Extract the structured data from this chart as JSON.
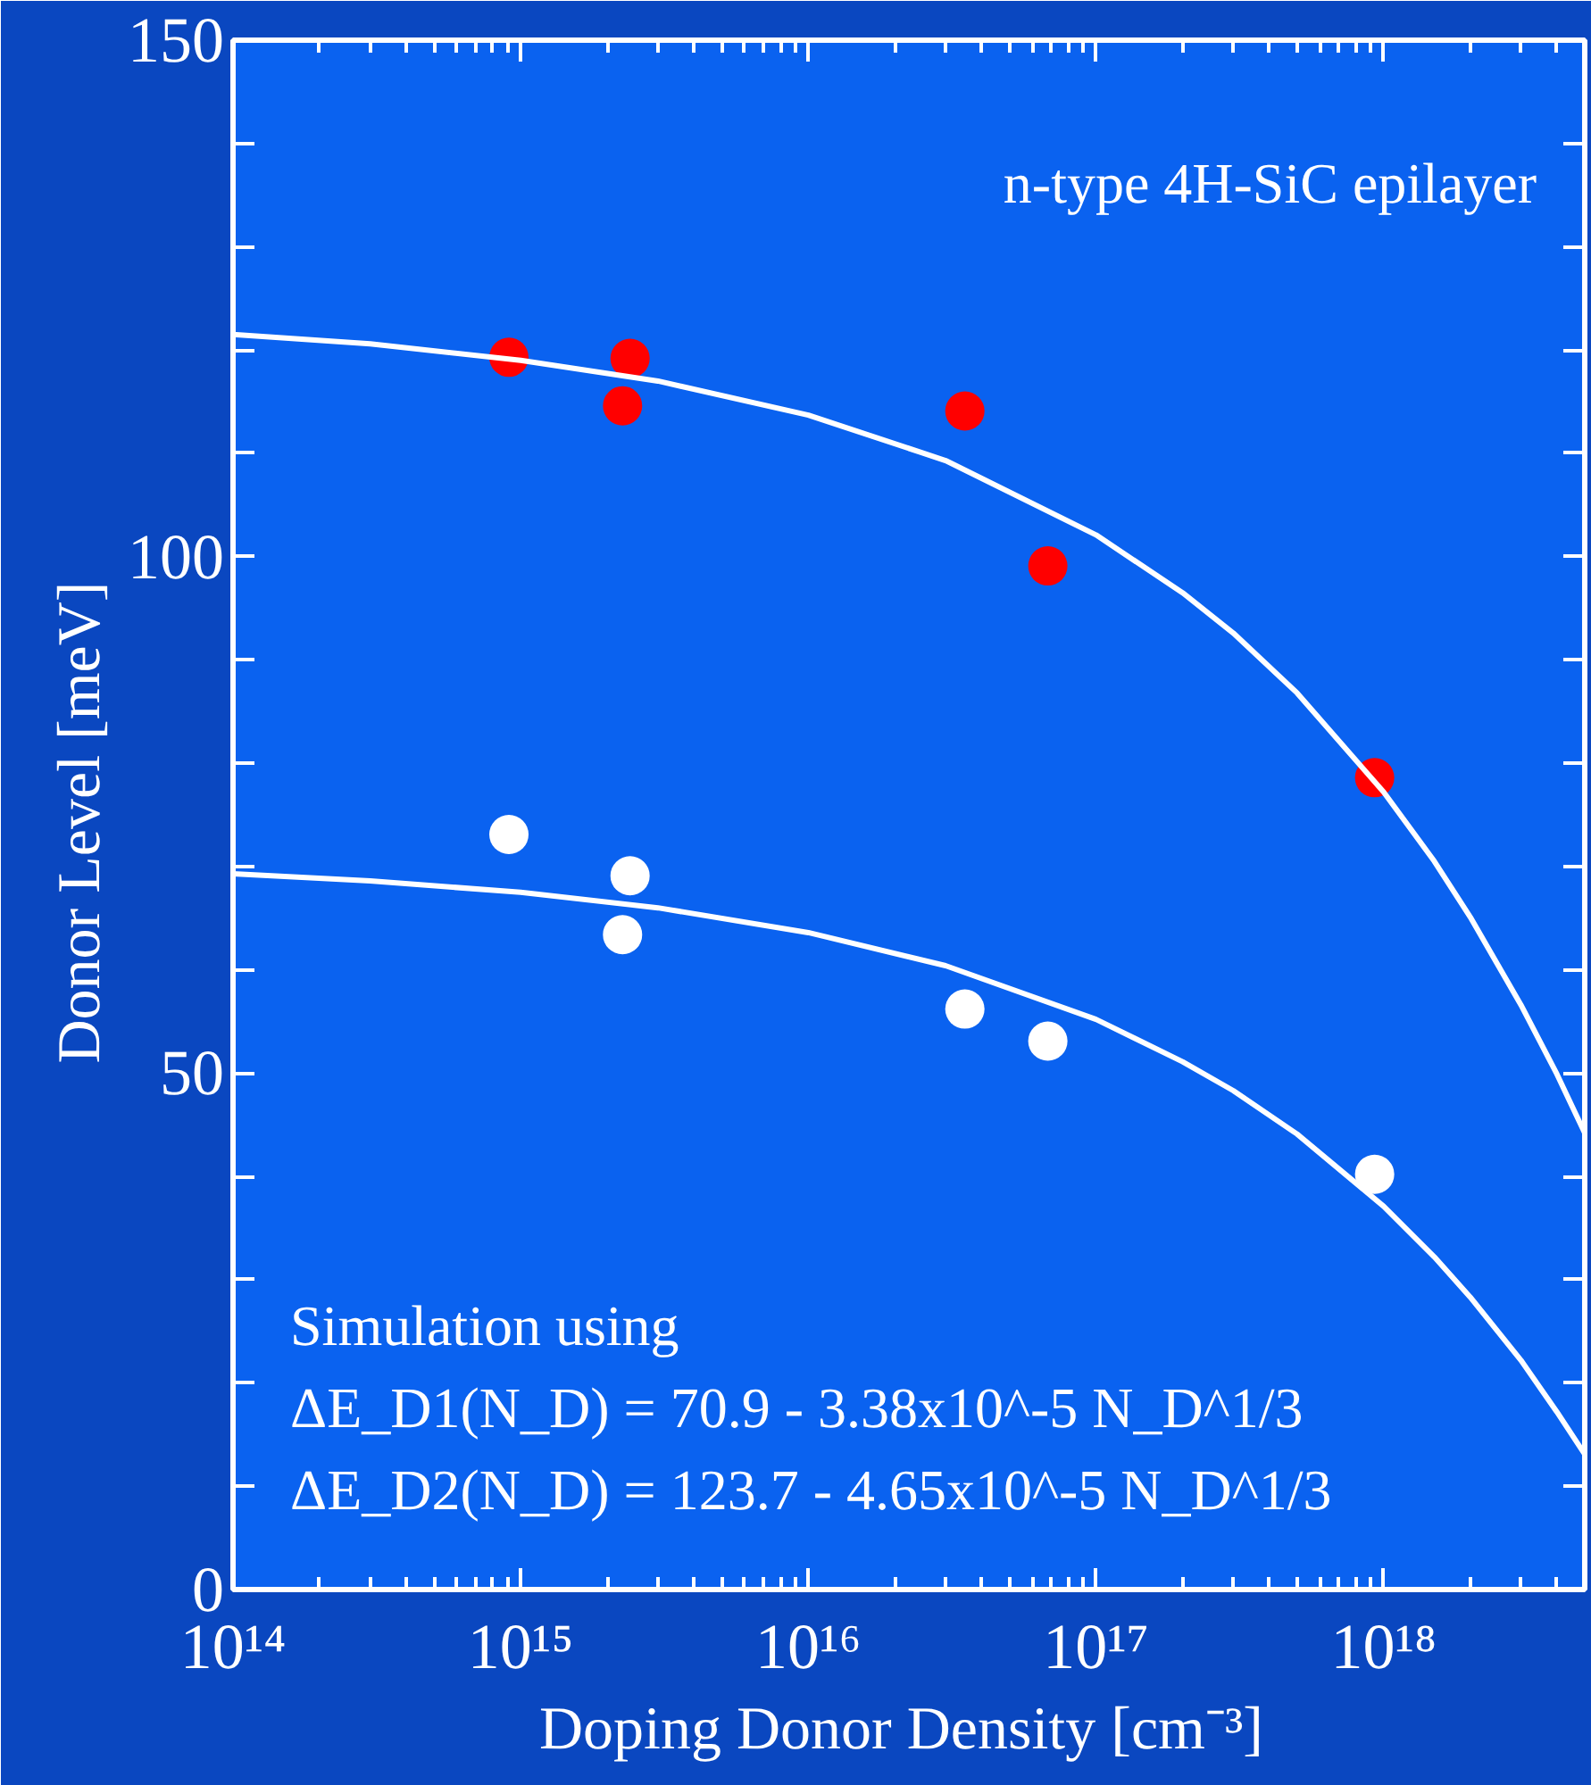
{
  "chart_data": {
    "type": "scatter",
    "xlabel": "Doping Donor Density  [cm⁻³]",
    "ylabel": "Donor Level  [meV]",
    "log": "x",
    "grid": false,
    "marker": "circle",
    "xlim": [
      100000000000000.0,
      5e+18
    ],
    "ylim": [
      0,
      150
    ],
    "xticks": [
      {
        "value": 100000000000000.0,
        "label": "10¹⁴"
      },
      {
        "value": 1000000000000000.0,
        "label": "10¹⁵"
      },
      {
        "value": 1e+16,
        "label": "10¹⁶"
      },
      {
        "value": 1e+17,
        "label": "10¹⁷"
      },
      {
        "value": 1e+18,
        "label": "10¹⁸"
      }
    ],
    "yticks": [
      0,
      {
        "value": 10,
        "label": null
      },
      {
        "value": 20,
        "label": null
      },
      {
        "value": 30,
        "label": null
      },
      {
        "value": 40,
        "label": null
      },
      50,
      {
        "value": 60,
        "label": null
      },
      {
        "value": 70,
        "label": null
      },
      {
        "value": 80,
        "label": null
      },
      {
        "value": 90,
        "label": null
      },
      100,
      {
        "value": 110,
        "label": null
      },
      {
        "value": 120,
        "label": null
      },
      {
        "value": 130,
        "label": null
      },
      {
        "value": 140,
        "label": null
      },
      150
    ],
    "series": [
      {
        "color": "#ff0000",
        "x": [
          910000000000000.0,
          2400000000000000.0,
          2260000000000000.0,
          3.5e+16,
          6.8e+16,
          9.3e+17
        ],
        "values": [
          119.3,
          119.2,
          114.6,
          114.1,
          99.1,
          78.6
        ]
      },
      {
        "color": "#ffffff",
        "x": [
          910000000000000.0,
          2400000000000000.0,
          2260000000000000.0,
          3.5e+16,
          6.8e+16,
          9.3e+17
        ],
        "values": [
          73.1,
          69.1,
          63.4,
          56.2,
          53.1,
          40.2
        ]
      },
      {
        "type": "line",
        "marker": "none",
        "color": "#ffffff",
        "x": [
          100000000000000.0,
          300000000000000.0,
          1000000000000000.0,
          3000000000000000.0,
          1e+16,
          3e+16,
          1e+17,
          2e+17,
          3e+17,
          5e+17,
          1e+18,
          1.5e+18,
          2e+18,
          3e+18,
          4e+18,
          5e+18
        ],
        "values": [
          121.5,
          120.6,
          119.0,
          117.0,
          113.7,
          109.3,
          102.1,
          96.5,
          92.6,
          86.8,
          77.2,
          70.5,
          65.1,
          56.6,
          49.9,
          44.2
        ]
      },
      {
        "type": "line",
        "marker": "none",
        "color": "#ffffff",
        "x": [
          100000000000000.0,
          300000000000000.0,
          1000000000000000.0,
          3000000000000000.0,
          1e+16,
          3e+16,
          1e+17,
          2e+17,
          3e+17,
          5e+17,
          1e+18,
          1.5e+18,
          2e+18,
          3e+18,
          4e+18,
          5e+18
        ],
        "values": [
          69.3,
          68.6,
          67.5,
          66.0,
          63.6,
          60.4,
          55.2,
          51.1,
          48.3,
          44.1,
          37.1,
          32.2,
          28.3,
          22.2,
          17.2,
          13.1
        ]
      }
    ],
    "annotations": [
      "n-type 4H-SiC epilayer",
      "Simulation using",
      "ΔE_D1(N_D) =   70.9 - 3.38x10^-5 N_D^1/3",
      "ΔE_D2(N_D) = 123.7 - 4.65x10^-5 N_D^1/3"
    ]
  }
}
